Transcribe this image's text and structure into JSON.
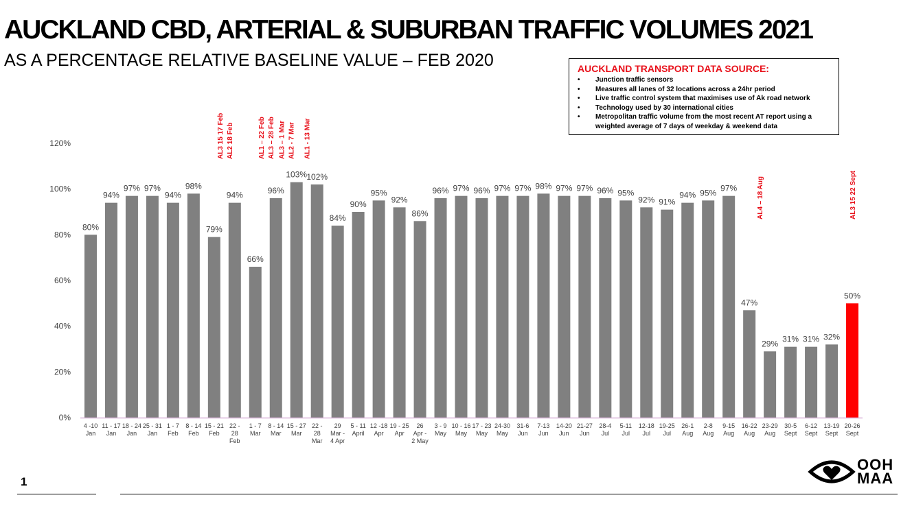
{
  "title": "AUCKLAND CBD, ARTERIAL & SUBURBAN TRAFFIC VOLUMES 2021",
  "subtitle": "AS A PERCENTAGE RELATIVE BASELINE VALUE – FEB 2020",
  "source": {
    "heading": "AUCKLAND TRANSPORT DATA SOURCE:",
    "bullet": "•",
    "items": [
      "Junction traffic sensors",
      "Measures all lanes of 32 locations across a 24hr period",
      "Live traffic control system that maximises use of Ak road network",
      "Technology used by 30 international cities",
      "Metropolitan traffic volume from the most recent AT report using a weighted average of 7 days of weekday & weekend data"
    ]
  },
  "page_number": "1",
  "logo": {
    "line1": "OOH",
    "line2": "MAA",
    "icon": "eye-heart-icon"
  },
  "colors": {
    "bar": "#808080",
    "highlight": "#ff0000",
    "annotation": "#e8101a",
    "axis_line": "#d9b3d9"
  },
  "chart_data": {
    "type": "bar",
    "title": "AUCKLAND CBD, ARTERIAL & SUBURBAN TRAFFIC VOLUMES 2021",
    "subtitle": "AS A PERCENTAGE RELATIVE BASELINE VALUE – FEB 2020",
    "ylim": [
      0,
      120
    ],
    "yticks": [
      "0%",
      "20%",
      "40%",
      "60%",
      "80%",
      "100%",
      "120%"
    ],
    "grid": false,
    "categories": [
      [
        "4 -10",
        "Jan"
      ],
      [
        "11 - 17",
        "Jan"
      ],
      [
        "18 - 24",
        "Jan"
      ],
      [
        "25 - 31",
        "Jan"
      ],
      [
        "1 - 7",
        "Feb"
      ],
      [
        "8 - 14",
        "Feb"
      ],
      [
        "15 - 21",
        "Feb"
      ],
      [
        "22 -",
        "28",
        "Feb"
      ],
      [
        "1 - 7",
        "Mar"
      ],
      [
        "8 - 14",
        "Mar"
      ],
      [
        "15 - 27",
        "Mar"
      ],
      [
        "22 -",
        "28",
        "Mar"
      ],
      [
        "29",
        "Mar -",
        "4 Apr"
      ],
      [
        "5 - 11",
        "April"
      ],
      [
        "12 -18",
        "Apr"
      ],
      [
        "19 - 25",
        "Apr"
      ],
      [
        "26",
        "Apr -",
        "2 May"
      ],
      [
        "3 - 9",
        "May"
      ],
      [
        "10 - 16",
        "May"
      ],
      [
        "17 - 23",
        "May"
      ],
      [
        "24-30",
        "May"
      ],
      [
        "31-6",
        "Jun"
      ],
      [
        "7-13",
        "Jun"
      ],
      [
        "14-20",
        "Jun"
      ],
      [
        "21-27",
        "Jun"
      ],
      [
        "28-4",
        "Jul"
      ],
      [
        "5-11",
        "Jul"
      ],
      [
        "12-18",
        "Jul"
      ],
      [
        "19-25",
        "Jul"
      ],
      [
        "26-1",
        "Aug"
      ],
      [
        "2-8",
        "Aug"
      ],
      [
        "9-15",
        "Aug"
      ],
      [
        "16-22",
        "Aug"
      ],
      [
        "23-29",
        "Aug"
      ],
      [
        "30-5",
        "Sept"
      ],
      [
        "6-12",
        "Sept"
      ],
      [
        "13-19",
        "Sept"
      ],
      [
        "20-26",
        "Sept"
      ]
    ],
    "values": [
      80,
      94,
      97,
      97,
      94,
      98,
      79,
      94,
      66,
      96,
      103,
      102,
      84,
      90,
      95,
      92,
      86,
      96,
      97,
      96,
      97,
      97,
      98,
      97,
      97,
      96,
      95,
      92,
      91,
      94,
      95,
      97,
      47,
      29,
      31,
      31,
      32,
      50
    ],
    "data_labels": [
      "80%",
      "94%",
      "97%",
      "97%",
      "94%",
      "98%",
      "79%",
      "94%",
      "66%",
      "96%",
      "103%",
      "102%",
      "84%",
      "90%",
      "95%",
      "92%",
      "86%",
      "96%",
      "97%",
      "96%",
      "97%",
      "97%",
      "98%",
      "97%",
      "97%",
      "96%",
      "95%",
      "92%",
      "91%",
      "94%",
      "95%",
      "97%",
      "47%",
      "29%",
      "31%",
      "31%",
      "32%",
      "50%"
    ],
    "highlight_index": 37,
    "annotations": [
      {
        "text": "AL3 15  17 Feb",
        "at": 6.5,
        "offset": -1
      },
      {
        "text": "AL2 18 Feb",
        "at": 6.5,
        "offset": 1
      },
      {
        "text": "AL1 – 22 Feb",
        "at": 8.5,
        "offset": -1
      },
      {
        "text": "AL3 – 28 Feb",
        "at": 8.5,
        "offset": 1
      },
      {
        "text": "AL3 – 1 Mar",
        "at": 9.5,
        "offset": -1
      },
      {
        "text": "AL2 - 7 Mar",
        "at": 9.5,
        "offset": 1
      },
      {
        "text": "AL1 - 13 Mar",
        "at": 10.5,
        "offset": 0
      },
      {
        "text": "AL4 – 18 Aug",
        "at": 32.5,
        "offset": 0
      },
      {
        "text": "AL3 15  22 Sept",
        "at": 37,
        "offset": 0
      }
    ]
  }
}
